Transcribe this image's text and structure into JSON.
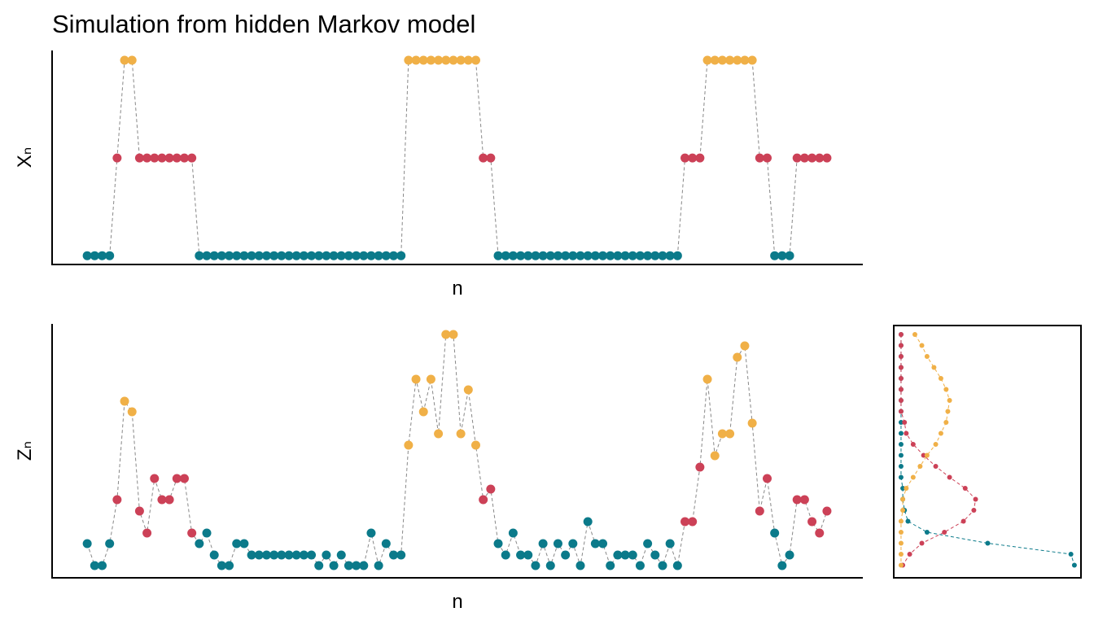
{
  "chart_data": [
    {
      "type": "line",
      "title": "Simulation from hidden Markov model",
      "x_label": "n",
      "y_label": "Xₙ",
      "x": [
        1,
        2,
        3,
        4,
        5,
        6,
        7,
        8,
        9,
        10,
        11,
        12,
        13,
        14,
        15,
        16,
        17,
        18,
        19,
        20,
        21,
        22,
        23,
        24,
        25,
        26,
        27,
        28,
        29,
        30,
        31,
        32,
        33,
        34,
        35,
        36,
        37,
        38,
        39,
        40,
        41,
        42,
        43,
        44,
        45,
        46,
        47,
        48,
        49,
        50,
        51,
        52,
        53,
        54,
        55,
        56,
        57,
        58,
        59,
        60,
        61,
        62,
        63,
        64,
        65,
        66,
        67,
        68,
        69,
        70,
        71,
        72,
        73,
        74,
        75,
        76,
        77,
        78,
        79,
        80,
        81,
        82,
        83,
        84,
        85,
        86,
        87,
        88,
        89,
        90,
        91,
        92,
        93,
        94,
        95,
        96,
        97,
        98,
        99,
        100
      ],
      "values": [
        0,
        0,
        0,
        0,
        1,
        2,
        2,
        1,
        1,
        1,
        1,
        1,
        1,
        1,
        1,
        0,
        0,
        0,
        0,
        0,
        0,
        0,
        0,
        0,
        0,
        0,
        0,
        0,
        0,
        0,
        0,
        0,
        0,
        0,
        0,
        0,
        0,
        0,
        0,
        0,
        0,
        0,
        0,
        2,
        2,
        2,
        2,
        2,
        2,
        2,
        2,
        2,
        2,
        1,
        1,
        0,
        0,
        0,
        0,
        0,
        0,
        0,
        0,
        0,
        0,
        0,
        0,
        0,
        0,
        0,
        0,
        0,
        0,
        0,
        0,
        0,
        0,
        0,
        0,
        0,
        1,
        1,
        1,
        2,
        2,
        2,
        2,
        2,
        2,
        2,
        1,
        1,
        0,
        0,
        0,
        1,
        1,
        1,
        1,
        1
      ],
      "palette": [
        "#0b7a8a",
        "#cc4157",
        "#f0b047"
      ],
      "line_color": "#888888",
      "xlim": [
        -3.7,
        104.8
      ],
      "ylim": [
        -0.09,
        2.1
      ]
    },
    {
      "type": "line",
      "x_label": "n",
      "y_label": "Zₙ",
      "x": [
        1,
        2,
        3,
        4,
        5,
        6,
        7,
        8,
        9,
        10,
        11,
        12,
        13,
        14,
        15,
        16,
        17,
        18,
        19,
        20,
        21,
        22,
        23,
        24,
        25,
        26,
        27,
        28,
        29,
        30,
        31,
        32,
        33,
        34,
        35,
        36,
        37,
        38,
        39,
        40,
        41,
        42,
        43,
        44,
        45,
        46,
        47,
        48,
        49,
        50,
        51,
        52,
        53,
        54,
        55,
        56,
        57,
        58,
        59,
        60,
        61,
        62,
        63,
        64,
        65,
        66,
        67,
        68,
        69,
        70,
        71,
        72,
        73,
        74,
        75,
        76,
        77,
        78,
        79,
        80,
        81,
        82,
        83,
        84,
        85,
        86,
        87,
        88,
        89,
        90,
        91,
        92,
        93,
        94,
        95,
        96,
        97,
        98,
        99,
        100
      ],
      "values": [
        4.2,
        1.5,
        1.5,
        4.2,
        9.6,
        21.7,
        20.4,
        8.2,
        5.5,
        12.2,
        9.6,
        9.6,
        12.2,
        12.2,
        5.5,
        4.2,
        5.5,
        2.8,
        1.5,
        1.5,
        4.2,
        4.2,
        2.8,
        2.8,
        2.8,
        2.8,
        2.8,
        2.8,
        2.8,
        2.8,
        2.8,
        1.5,
        2.8,
        1.5,
        2.8,
        1.5,
        1.5,
        1.5,
        5.5,
        1.5,
        4.2,
        2.8,
        2.8,
        16.3,
        24.4,
        20.4,
        24.4,
        17.7,
        29.9,
        29.9,
        17.7,
        23.1,
        16.3,
        9.6,
        10.9,
        4.2,
        2.8,
        5.5,
        2.8,
        2.8,
        1.5,
        4.2,
        1.5,
        4.2,
        2.8,
        4.2,
        1.5,
        6.9,
        4.2,
        4.2,
        1.5,
        2.8,
        2.8,
        2.8,
        1.5,
        4.2,
        2.8,
        1.5,
        4.2,
        1.5,
        6.9,
        6.9,
        13.6,
        24.4,
        15.0,
        17.7,
        17.7,
        27.1,
        28.5,
        19.0,
        8.2,
        12.2,
        5.5,
        1.5,
        2.8,
        9.6,
        9.6,
        6.9,
        5.5,
        8.2
      ],
      "line_color": "#888888",
      "xlim": [
        -3.7,
        104.8
      ],
      "ylim": [
        0,
        31.2
      ]
    },
    {
      "type": "density",
      "z": [
        29.9,
        28.55,
        27.2,
        25.85,
        24.5,
        23.15,
        21.8,
        20.45,
        19.1,
        17.75,
        16.4,
        15.05,
        13.7,
        12.35,
        11.0,
        9.65,
        8.3,
        6.95,
        5.6,
        4.25,
        2.9,
        1.55
      ],
      "series": [
        {
          "color": "#0b7a8a",
          "values": [
            0,
            0,
            0,
            0,
            0,
            0,
            0,
            0,
            0,
            0,
            0,
            0,
            0,
            0,
            0.01,
            0.01,
            0.02,
            0.04,
            0.15,
            0.5,
            0.98,
            1.0
          ]
        },
        {
          "color": "#cc4157",
          "values": [
            0,
            0,
            0,
            0,
            0,
            0,
            0,
            0,
            0.02,
            0.03,
            0.07,
            0.13,
            0.2,
            0.28,
            0.37,
            0.43,
            0.42,
            0.36,
            0.25,
            0.12,
            0.05,
            0.01
          ]
        },
        {
          "color": "#f0b047",
          "values": [
            0.08,
            0.12,
            0.15,
            0.19,
            0.23,
            0.26,
            0.28,
            0.27,
            0.26,
            0.23,
            0.2,
            0.15,
            0.11,
            0.07,
            0.03,
            0.01,
            0.01,
            0,
            0,
            0,
            0,
            0
          ]
        }
      ],
      "xlim": [
        -0.042,
        1.038
      ],
      "ylim": [
        0,
        31.0
      ]
    }
  ]
}
